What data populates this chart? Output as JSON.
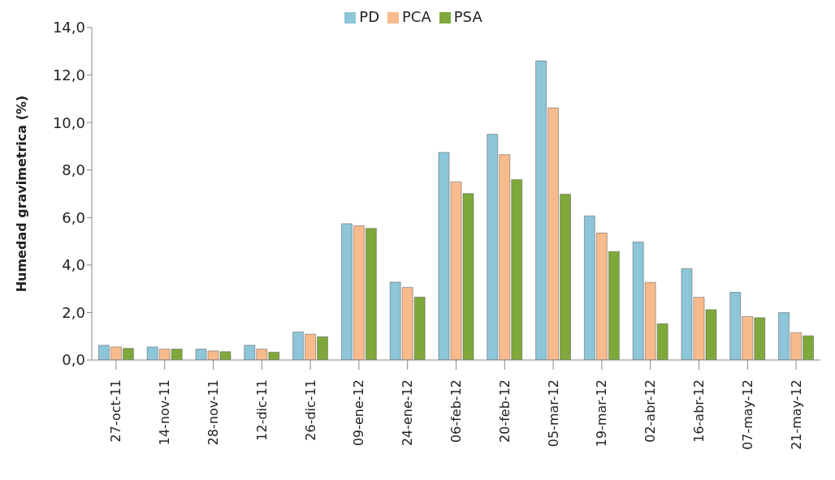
{
  "chart_data": {
    "type": "bar",
    "ylabel": "Humedad gravimetrica (%)",
    "categories": [
      "27-oct-11",
      "14-nov-11",
      "28-nov-11",
      "12-dic-11",
      "26-dic-11",
      "09-ene-12",
      "24-ene-12",
      "06-feb-12",
      "20-feb-12",
      "05-mar-12",
      "19-mar-12",
      "02-abr-12",
      "16-abr-12",
      "07-may-12",
      "21-may-12"
    ],
    "series": [
      {
        "name": "PD",
        "color": "#8cc6d8",
        "values": [
          0.62,
          0.55,
          0.46,
          0.62,
          1.18,
          5.74,
          3.28,
          8.74,
          9.51,
          12.6,
          6.07,
          4.97,
          3.85,
          2.85,
          2.0
        ]
      },
      {
        "name": "PCA",
        "color": "#f9bb8c",
        "values": [
          0.55,
          0.46,
          0.38,
          0.46,
          1.09,
          5.65,
          3.06,
          7.5,
          8.65,
          10.62,
          5.35,
          3.27,
          2.64,
          1.83,
          1.15
        ]
      },
      {
        "name": "PSA",
        "color": "#7fa83a",
        "values": [
          0.49,
          0.46,
          0.35,
          0.33,
          0.98,
          5.54,
          2.65,
          7.01,
          7.6,
          6.98,
          4.57,
          1.53,
          2.12,
          1.78,
          1.02
        ]
      }
    ],
    "ylim": [
      0,
      14
    ],
    "yticks": [
      {
        "value": 0,
        "label": "0,0"
      },
      {
        "value": 2,
        "label": "2,0"
      },
      {
        "value": 4,
        "label": "4,0"
      },
      {
        "value": 6,
        "label": "6,0"
      },
      {
        "value": 8,
        "label": "8,0"
      },
      {
        "value": 10,
        "label": "10,0"
      },
      {
        "value": 12,
        "label": "12,0"
      },
      {
        "value": 14,
        "label": "14,0"
      }
    ],
    "grid": false,
    "legend": "top"
  }
}
